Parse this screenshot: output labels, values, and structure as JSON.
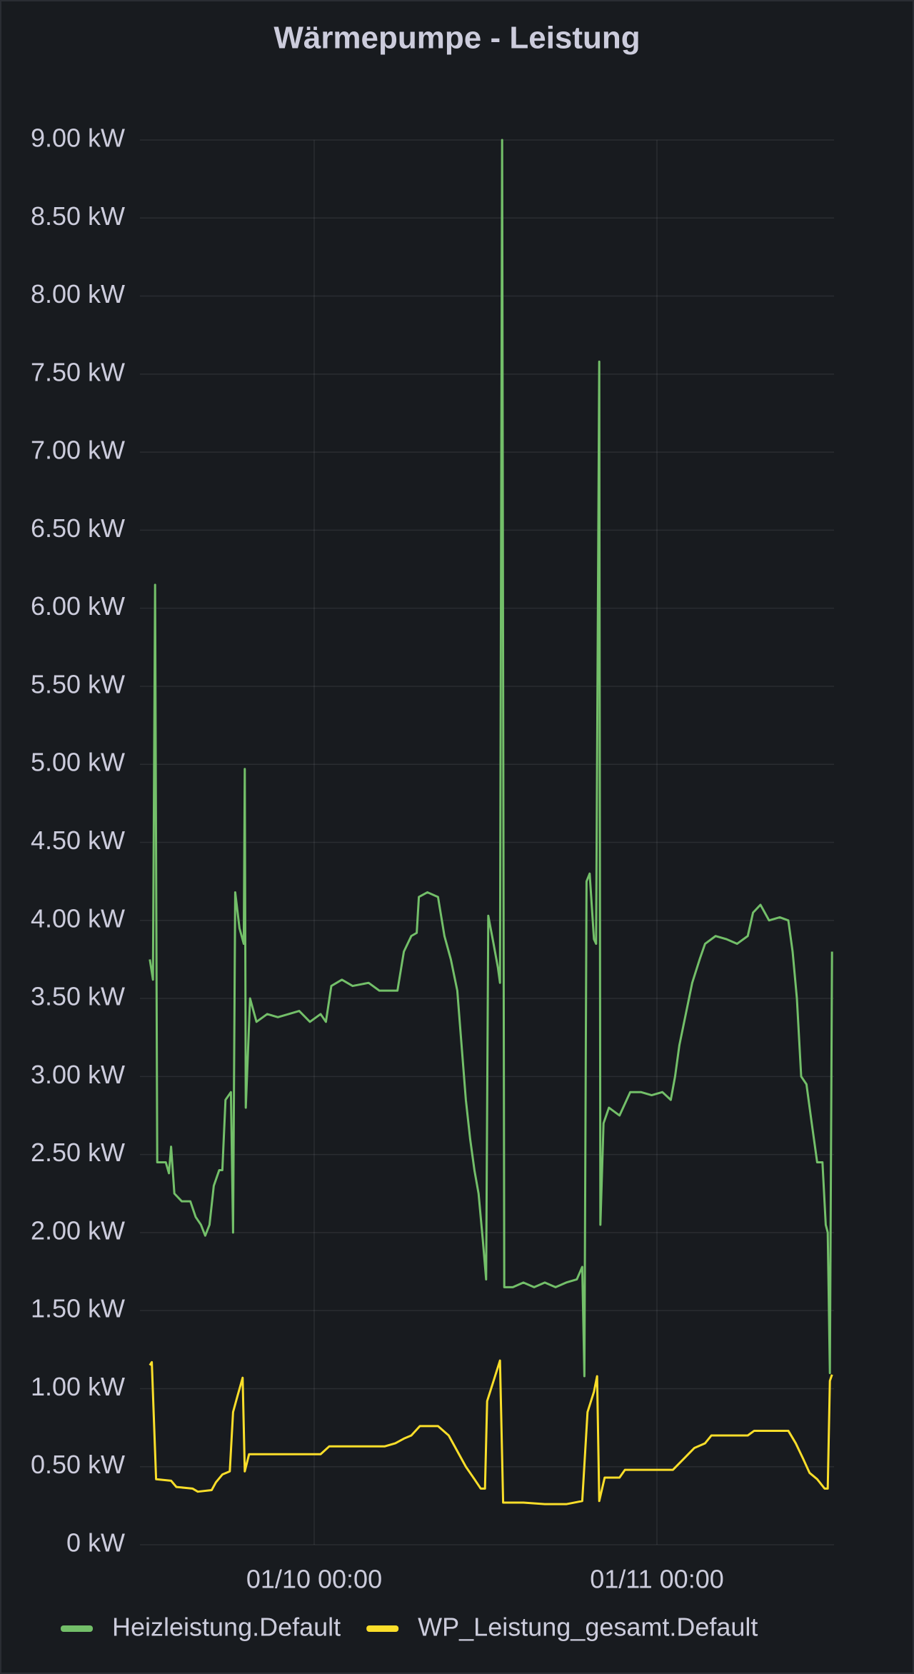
{
  "chart_data": {
    "type": "line",
    "title": "Wärmepumpe - Leistung",
    "xlim": [
      -12.2,
      36.4
    ],
    "xticks": [
      {
        "value": 0,
        "label": "01/10 00:00"
      },
      {
        "value": 24,
        "label": "01/11 00:00"
      }
    ],
    "ylim": [
      0,
      9
    ],
    "yticks": [
      {
        "value": 0,
        "label": "0 kW"
      },
      {
        "value": 0.5,
        "label": "0.50 kW"
      },
      {
        "value": 1,
        "label": "1.00 kW"
      },
      {
        "value": 1.5,
        "label": "1.50 kW"
      },
      {
        "value": 2,
        "label": "2.00 kW"
      },
      {
        "value": 2.5,
        "label": "2.50 kW"
      },
      {
        "value": 3,
        "label": "3.00 kW"
      },
      {
        "value": 3.5,
        "label": "3.50 kW"
      },
      {
        "value": 4,
        "label": "4.00 kW"
      },
      {
        "value": 4.5,
        "label": "4.50 kW"
      },
      {
        "value": 5,
        "label": "5.00 kW"
      },
      {
        "value": 5.5,
        "label": "5.50 kW"
      },
      {
        "value": 6,
        "label": "6.00 kW"
      },
      {
        "value": 6.5,
        "label": "6.50 kW"
      },
      {
        "value": 7,
        "label": "7.00 kW"
      },
      {
        "value": 7.5,
        "label": "7.50 kW"
      },
      {
        "value": 8,
        "label": "8.00 kW"
      },
      {
        "value": 8.5,
        "label": "8.50 kW"
      },
      {
        "value": 9,
        "label": "9.00 kW"
      }
    ],
    "grid": true,
    "legend": "bottom",
    "series": [
      {
        "name": "Heizleistung.Default",
        "color": "#73bf69",
        "x": [
          -11.51,
          -11.29,
          -11.14,
          -10.99,
          -10.39,
          -10.17,
          -10.02,
          -9.79,
          -9.27,
          -8.67,
          -8.3,
          -7.93,
          -7.63,
          -7.33,
          -7.03,
          -6.65,
          -6.43,
          -6.21,
          -5.83,
          -5.68,
          -5.53,
          -5.23,
          -4.93,
          -4.86,
          -4.79,
          -4.49,
          -4.04,
          -3.29,
          -2.54,
          -1.79,
          -1.05,
          -0.3,
          0.45,
          0.82,
          1.2,
          1.94,
          2.69,
          3.81,
          4.56,
          5.31,
          5.83,
          6.28,
          6.8,
          7.18,
          7.33,
          7.93,
          8.67,
          9.12,
          9.57,
          10.02,
          10.32,
          10.62,
          10.92,
          11.22,
          11.51,
          11.81,
          12.04,
          12.19,
          12.56,
          12.86,
          13.01,
          13.16,
          13.31,
          13.91,
          14.65,
          15.4,
          16.15,
          16.9,
          17.65,
          18.39,
          18.77,
          18.92,
          19.07,
          19.29,
          19.59,
          19.74,
          19.96,
          20.04,
          20.26,
          20.64,
          21.38,
          22.13,
          22.88,
          23.63,
          24.38,
          24.97,
          25.27,
          25.57,
          26.02,
          26.47,
          26.99,
          27.37,
          28.11,
          28.86,
          29.61,
          30.36,
          30.73,
          31.25,
          31.85,
          32.6,
          33.2,
          33.5,
          33.8,
          34.1,
          34.47,
          34.84,
          35.22,
          35.59,
          35.82,
          35.96,
          36.11,
          36.26
        ],
        "values": [
          3.75,
          3.62,
          6.15,
          2.45,
          2.45,
          2.38,
          2.55,
          2.25,
          2.2,
          2.2,
          2.1,
          2.05,
          1.98,
          2.05,
          2.3,
          2.4,
          2.4,
          2.85,
          2.9,
          2.0,
          4.18,
          3.95,
          3.85,
          4.97,
          2.8,
          3.5,
          3.35,
          3.4,
          3.38,
          3.4,
          3.42,
          3.35,
          3.4,
          3.35,
          3.58,
          3.62,
          3.58,
          3.6,
          3.55,
          3.55,
          3.55,
          3.8,
          3.9,
          3.92,
          4.15,
          4.18,
          4.15,
          3.9,
          3.75,
          3.55,
          3.2,
          2.85,
          2.6,
          2.4,
          2.25,
          1.95,
          1.7,
          4.03,
          3.85,
          3.7,
          3.6,
          9.0,
          1.65,
          1.65,
          1.68,
          1.65,
          1.68,
          1.65,
          1.68,
          1.7,
          1.78,
          1.08,
          4.25,
          4.3,
          3.88,
          3.85,
          7.58,
          2.05,
          2.7,
          2.8,
          2.75,
          2.9,
          2.9,
          2.88,
          2.9,
          2.85,
          3.0,
          3.2,
          3.4,
          3.6,
          3.75,
          3.85,
          3.9,
          3.88,
          3.85,
          3.9,
          4.05,
          4.1,
          4.0,
          4.02,
          4.0,
          3.8,
          3.5,
          3.0,
          2.95,
          2.7,
          2.45,
          2.45,
          2.05,
          2.0,
          1.1,
          3.8
        ]
      },
      {
        "name": "WP_Leistung_gesamt.Default",
        "color": "#fade2a",
        "x": [
          -11.51,
          -11.37,
          -11.07,
          -10.02,
          -9.65,
          -8.52,
          -8.15,
          -7.18,
          -6.88,
          -6.43,
          -5.91,
          -5.68,
          -5.38,
          -5.01,
          -4.86,
          -4.56,
          -3.29,
          -1.05,
          0.45,
          1.05,
          2.69,
          4.93,
          5.68,
          6.28,
          6.8,
          7.4,
          8.67,
          9.42,
          10.02,
          10.62,
          11.22,
          11.66,
          11.96,
          12.11,
          12.56,
          13.01,
          13.23,
          14.65,
          16.15,
          17.65,
          18.77,
          19.14,
          19.59,
          19.81,
          19.96,
          20.34,
          21.38,
          21.76,
          22.88,
          25.12,
          25.87,
          26.62,
          27.37,
          27.81,
          30.36,
          30.81,
          33.2,
          33.72,
          34.24,
          34.69,
          35.22,
          35.74,
          35.96,
          36.11,
          36.26
        ],
        "values": [
          1.15,
          1.17,
          0.42,
          0.41,
          0.37,
          0.36,
          0.34,
          0.35,
          0.4,
          0.45,
          0.47,
          0.85,
          0.95,
          1.07,
          0.47,
          0.58,
          0.58,
          0.58,
          0.58,
          0.63,
          0.63,
          0.63,
          0.65,
          0.68,
          0.7,
          0.76,
          0.76,
          0.7,
          0.6,
          0.5,
          0.42,
          0.36,
          0.36,
          0.92,
          1.05,
          1.18,
          0.27,
          0.27,
          0.26,
          0.26,
          0.28,
          0.85,
          0.98,
          1.08,
          0.28,
          0.43,
          0.43,
          0.48,
          0.48,
          0.48,
          0.55,
          0.62,
          0.65,
          0.7,
          0.7,
          0.73,
          0.73,
          0.65,
          0.55,
          0.46,
          0.42,
          0.36,
          0.36,
          1.05,
          1.09
        ]
      }
    ]
  }
}
